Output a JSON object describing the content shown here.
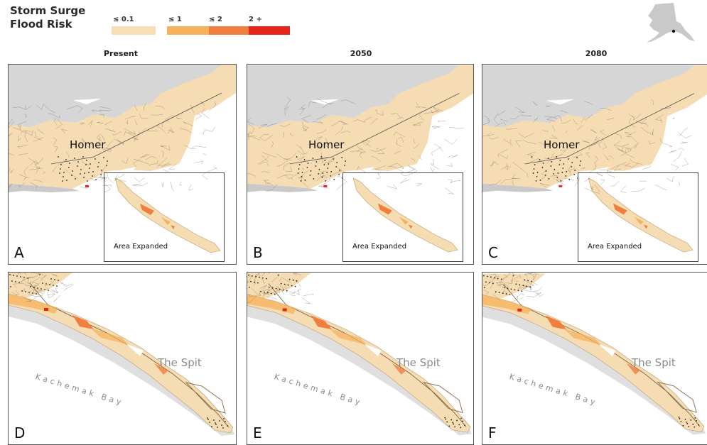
{
  "legend": {
    "title_line1": "Storm Surge",
    "title_line2": "Flood Risk",
    "classes": [
      {
        "label": "≤ 0.1",
        "color": "#f8e0b6"
      },
      {
        "label": "≤ 1",
        "color": "#f6b15a"
      },
      {
        "label": "≤ 2",
        "color": "#f07e3e"
      },
      {
        "label": "2 +",
        "color": "#e8231c"
      }
    ]
  },
  "inset_map": {
    "name": "alaska-locator-map",
    "region_color": "#c9c9c9",
    "marker_color": "#111111"
  },
  "columns": [
    {
      "title": "Present"
    },
    {
      "title": "2050"
    },
    {
      "title": "2080"
    }
  ],
  "panels_top": [
    {
      "letter": "A",
      "place": "Homer",
      "inset_label": "Area Expanded"
    },
    {
      "letter": "B",
      "place": "Homer",
      "inset_label": "Area Expanded"
    },
    {
      "letter": "C",
      "place": "Homer",
      "inset_label": "Area Expanded"
    }
  ],
  "panels_bottom": [
    {
      "letter": "D",
      "spit_label": "The Spit",
      "bay_label": "Kachemak Bay"
    },
    {
      "letter": "E",
      "spit_label": "The Spit",
      "bay_label": "Kachemak Bay"
    },
    {
      "letter": "F",
      "spit_label": "The Spit",
      "bay_label": "Kachemak Bay"
    }
  ],
  "map_colors": {
    "land": "#f6dcb3",
    "upland": "#d6d6d6",
    "water": "#ffffff",
    "roads": "#6b5a44",
    "shore": "#c9c9c9"
  }
}
